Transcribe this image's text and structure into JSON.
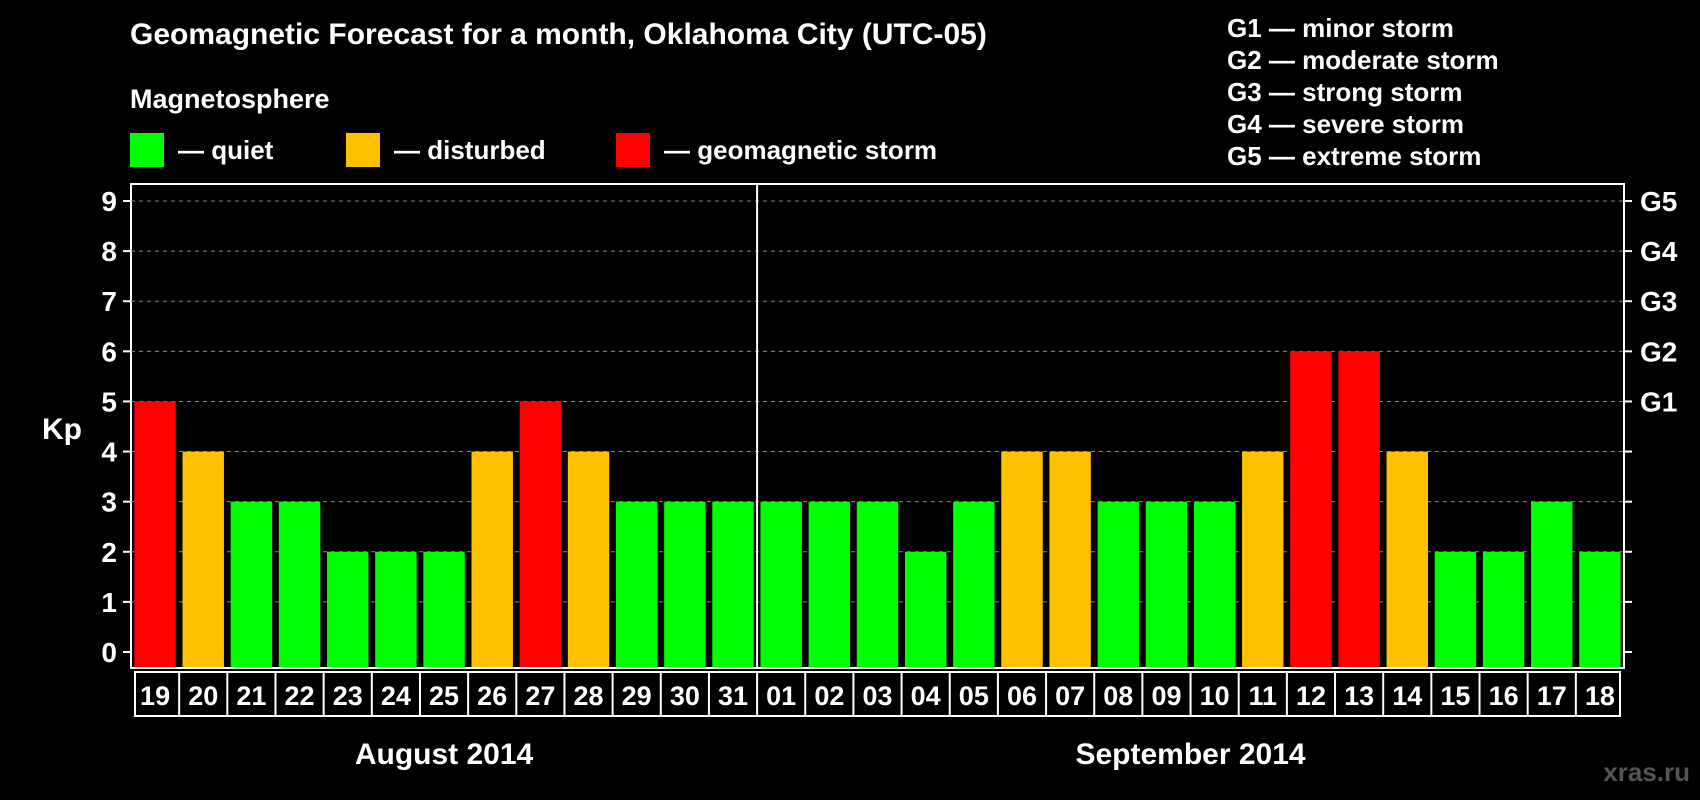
{
  "title": "Geomagnetic Forecast for a month, Oklahoma City (UTC-05)",
  "legend": {
    "heading": "Magnetosphere",
    "items": [
      {
        "label": "— quiet",
        "color": "#00ff00"
      },
      {
        "label": "— disturbed",
        "color": "#ffc000"
      },
      {
        "label": "— geomagnetic storm",
        "color": "#ff0000"
      }
    ]
  },
  "g_levels": [
    "G1 — minor storm",
    "G2 — moderate storm",
    "G3 — strong storm",
    "G4 — severe storm",
    "G5 — extreme storm"
  ],
  "watermark": "xras.ru",
  "chart_data": {
    "type": "bar",
    "ylabel": "Kp",
    "ylim": [
      0,
      9
    ],
    "yticks": [
      0,
      1,
      2,
      3,
      4,
      5,
      6,
      7,
      8,
      9
    ],
    "right_axis_labels": [
      {
        "kp": 5,
        "label": "G1"
      },
      {
        "kp": 6,
        "label": "G2"
      },
      {
        "kp": 7,
        "label": "G3"
      },
      {
        "kp": 8,
        "label": "G4"
      },
      {
        "kp": 9,
        "label": "G5"
      }
    ],
    "grid": "dashed horizontal",
    "categories": [
      "19",
      "20",
      "21",
      "22",
      "23",
      "24",
      "25",
      "26",
      "27",
      "28",
      "29",
      "30",
      "31",
      "01",
      "02",
      "03",
      "04",
      "05",
      "06",
      "07",
      "08",
      "09",
      "10",
      "11",
      "12",
      "13",
      "14",
      "15",
      "16",
      "17",
      "18"
    ],
    "values": [
      5,
      4,
      3,
      3,
      2,
      2,
      2,
      4,
      5,
      4,
      3,
      3,
      3,
      3,
      3,
      3,
      2,
      3,
      4,
      4,
      3,
      3,
      3,
      4,
      6,
      6,
      4,
      2,
      2,
      3,
      2
    ],
    "months": [
      {
        "label": "August 2014",
        "count": 13
      },
      {
        "label": "September 2014",
        "count": 18
      }
    ],
    "colors": {
      "quiet": "#00ff00",
      "disturbed": "#ffc000",
      "storm": "#ff0000"
    }
  }
}
